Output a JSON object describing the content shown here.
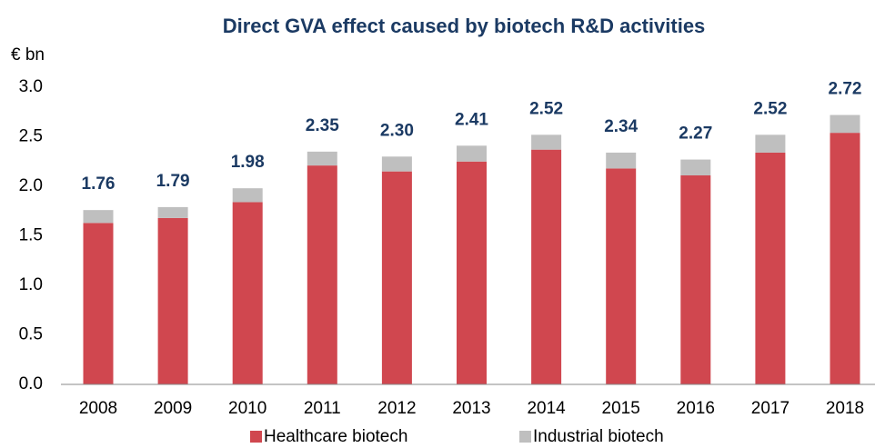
{
  "chart_data": {
    "type": "stacked_bar",
    "title": "Direct GVA effect caused by biotech R&D activities",
    "y_label": "€ bn",
    "categories": [
      "2008",
      "2009",
      "2010",
      "2011",
      "2012",
      "2013",
      "2014",
      "2015",
      "2016",
      "2017",
      "2018"
    ],
    "series": [
      {
        "name": "Healthcare biotech",
        "color": "#d0474f",
        "values": [
          1.63,
          1.68,
          1.84,
          2.21,
          2.15,
          2.25,
          2.37,
          2.18,
          2.11,
          2.34,
          2.54
        ]
      },
      {
        "name": "Industrial biotech",
        "color": "#bfbfbf",
        "values": [
          0.13,
          0.11,
          0.14,
          0.14,
          0.15,
          0.16,
          0.15,
          0.16,
          0.16,
          0.18,
          0.18
        ]
      }
    ],
    "totals": [
      1.76,
      1.79,
      1.98,
      2.35,
      2.3,
      2.41,
      2.52,
      2.34,
      2.27,
      2.52,
      2.72
    ],
    "total_labels": [
      "1.76",
      "1.79",
      "1.98",
      "2.35",
      "2.30",
      "2.41",
      "2.52",
      "2.34",
      "2.27",
      "2.52",
      "2.72"
    ],
    "ylim": [
      0,
      3.0
    ],
    "yticks": [
      {
        "value": 0,
        "label": "0.0"
      },
      {
        "value": 0.5,
        "label": "0.5"
      },
      {
        "value": 1,
        "label": "1.0"
      },
      {
        "value": 1.5,
        "label": "1.5"
      },
      {
        "value": 2,
        "label": "2.0"
      },
      {
        "value": 2.5,
        "label": "2.5"
      },
      {
        "value": 3,
        "label": "3.0"
      }
    ],
    "grid": false,
    "legend": "bottom"
  }
}
